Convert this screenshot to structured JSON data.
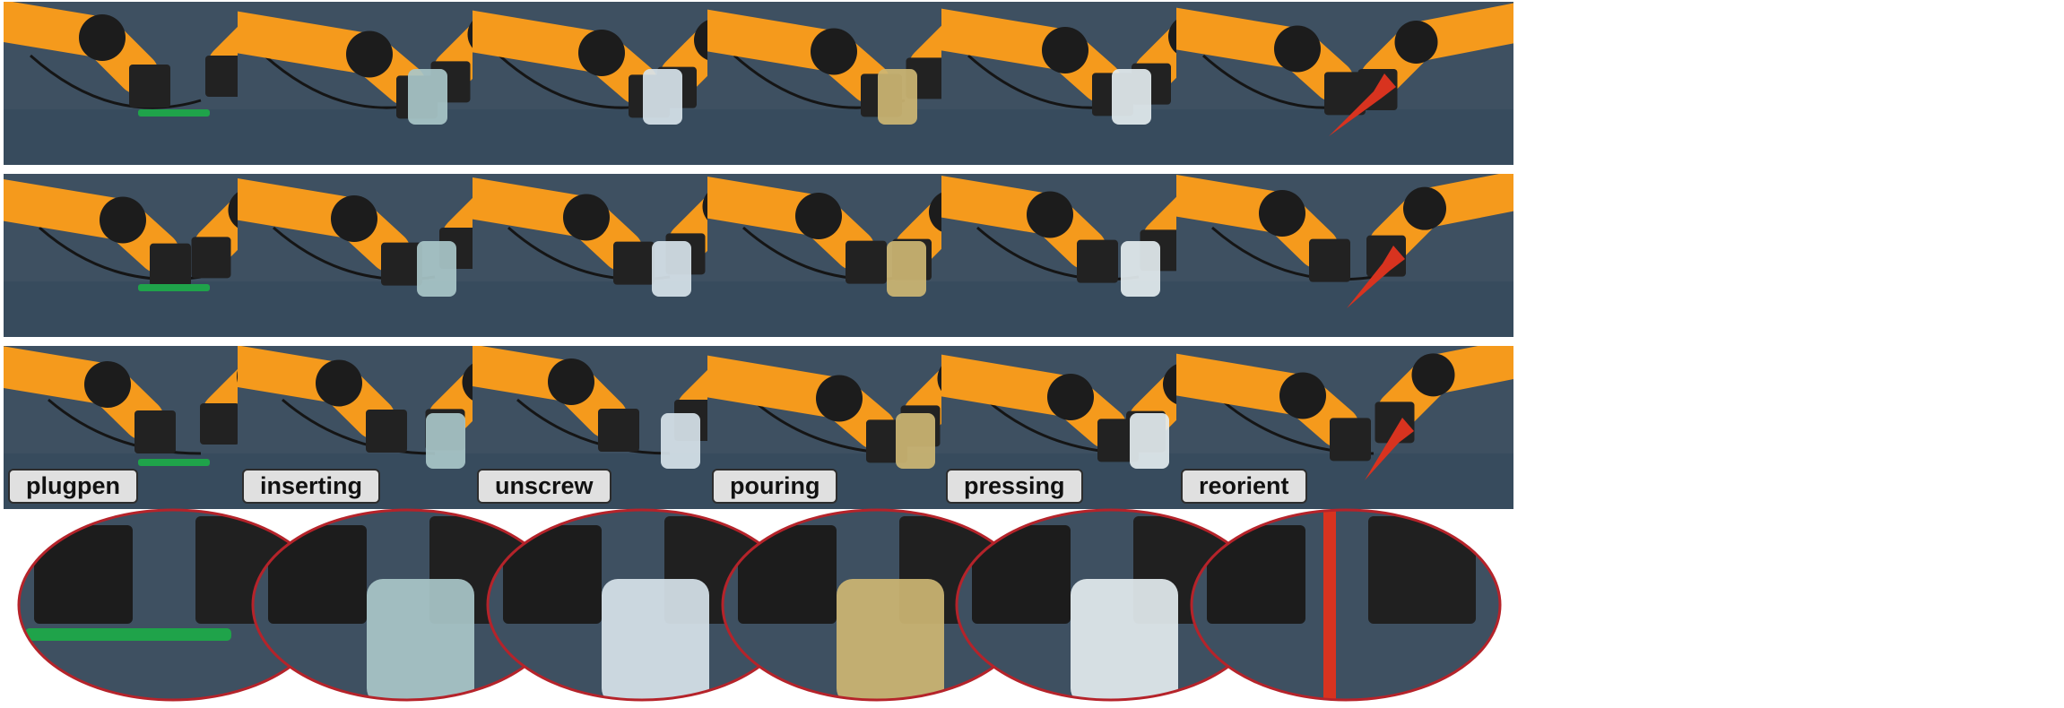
{
  "figure": {
    "rows_per_task": 3,
    "tasks": [
      {
        "label": "plugpen",
        "object": "green pen",
        "object_color": "#1fa34a"
      },
      {
        "label": "inserting",
        "object": "light blue cup",
        "object_color": "#a9c7c9"
      },
      {
        "label": "unscrew",
        "object": "water bottle",
        "object_color": "#d7e3ea"
      },
      {
        "label": "pouring",
        "object": "yellow cup and bottle",
        "object_color": "#cdb673"
      },
      {
        "label": "pressing",
        "object": "soap dispenser",
        "object_color": "#e3ebef"
      },
      {
        "label": "reorient",
        "object": "red spatula",
        "object_color": "#d8331f"
      }
    ]
  },
  "colors": {
    "table": "#3e5061",
    "table_dark": "#34475a",
    "robot_arm": "#f59a1c",
    "gripper": "#222222",
    "zoom_border": "#b5232a",
    "label_bg": "#e0e0e0"
  }
}
